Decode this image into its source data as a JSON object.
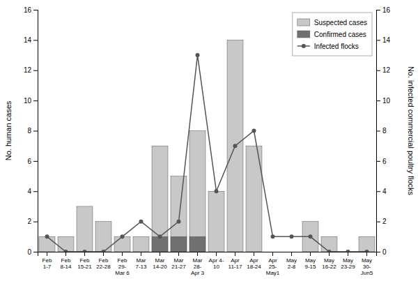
{
  "chart_data": {
    "type": "bar",
    "categories": [
      "Feb\n1-7",
      "Feb\n8-14",
      "Feb\n15-21",
      "Feb\n22-28",
      "Feb\n29-\nMar 6",
      "Mar\n7-13",
      "Mar\n14-20",
      "Mar\n21-27",
      "Mar\n28-\nApr 3",
      "Apr 4-\n10",
      "Apr\n11-17",
      "Apr\n18-24",
      "Apr\n25-\nMay1",
      "May\n2-8",
      "May\n9-15",
      "May\n16-22",
      "May\n23-29",
      "May\n30-\nJun5"
    ],
    "series": [
      {
        "name": "Suspected cases",
        "type": "bar",
        "color": "#c8c8c8",
        "values": [
          1,
          1,
          3,
          2,
          1,
          1,
          7,
          5,
          8,
          4,
          14,
          7,
          0,
          0,
          2,
          1,
          0,
          1
        ]
      },
      {
        "name": "Confirmed cases",
        "type": "bar",
        "color": "#707070",
        "values": [
          0,
          0,
          0,
          0,
          0,
          0,
          1,
          1,
          1,
          0,
          0,
          0,
          0,
          0,
          0,
          0,
          0,
          0
        ]
      },
      {
        "name": "Infected flocks",
        "type": "line",
        "color": "#555555",
        "marker": "circle",
        "line_style": "solid",
        "axis": "y2",
        "values": [
          1,
          0,
          0,
          0,
          1,
          2,
          1,
          2,
          13,
          4,
          7,
          8,
          1,
          1,
          1,
          0,
          0,
          0
        ]
      }
    ],
    "ylabel": "No. human cases",
    "y2label": "No. infected commercial poultry flocks",
    "ylim": [
      0,
      16
    ],
    "yticks": [
      0,
      2,
      4,
      6,
      8,
      10,
      12,
      14,
      16
    ],
    "y2lim": [
      0,
      16
    ],
    "y2ticks": [
      0,
      2,
      4,
      6,
      8,
      10,
      12,
      14,
      16
    ],
    "stacked": false,
    "grid": false,
    "legend": "upper right"
  }
}
